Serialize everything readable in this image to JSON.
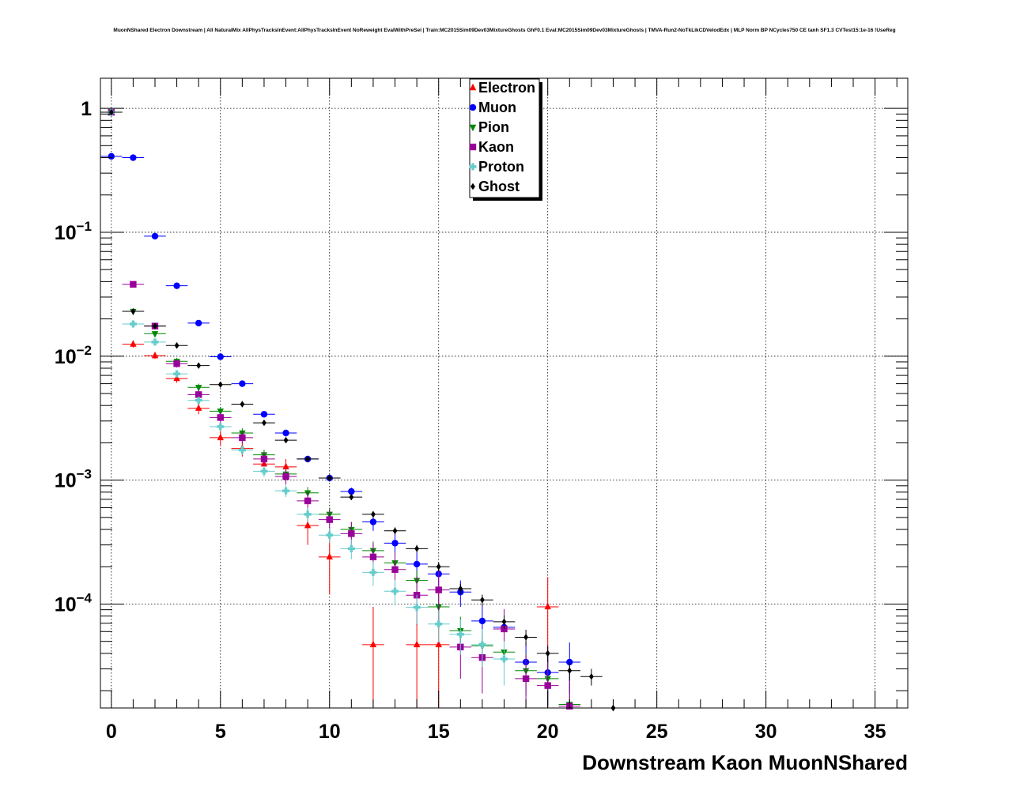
{
  "title": "MuonNShared Electron Downstream | All NaturalMix AllPhysTracksInEvent:AllPhysTracksInEvent NoReweight EvalWithPreSel | Train:MC2015Sim09Dev03MixtureGhosts GhF0.1 Eval:MC2015Sim09Dev03MixtureGhosts | TMVA-Run2-NoTkLikCDVelodEdx | MLP Norm BP NCycles750 CE tanh SF1.3 CVTest15:1e-16 !UseReg",
  "chart_data": {
    "type": "scatter",
    "title": "MuonNShared Electron Downstream | All NaturalMix AllPhysTracksInEvent:AllPhysTracksInEvent NoReweight EvalWithPreSel | Train:MC2015Sim09Dev03MixtureGhosts GhF0.1 Eval:MC2015Sim09Dev03MixtureGhosts | TMVA-Run2-NoTkLikCDVelodEdx | MLP Norm BP NCycles750 CE tanh SF1.3 CVTest15:1e-16 !UseReg",
    "xlabel": "Downstream Kaon MuonNShared",
    "ylabel": "",
    "xlim": [
      -0.5,
      36.5
    ],
    "ylim": [
      1.45e-05,
      1.75
    ],
    "yscale": "log",
    "grid": true,
    "legend_position": "top-center",
    "x_ticks": [
      0,
      5,
      10,
      15,
      20,
      25,
      30,
      35
    ],
    "x_tick_labels": [
      "0",
      "5",
      "10",
      "15",
      "20",
      "25",
      "30",
      "35"
    ],
    "y_ticks": [
      1,
      0.1,
      0.01,
      0.001,
      0.0001
    ],
    "y_tick_labels": [
      {
        "base": "1",
        "exp": ""
      },
      {
        "base": "10",
        "exp": "−1"
      },
      {
        "base": "10",
        "exp": "−2"
      },
      {
        "base": "10",
        "exp": "−3"
      },
      {
        "base": "10",
        "exp": "−4"
      }
    ],
    "series": [
      {
        "name": "Electron",
        "color": "#ff0000",
        "marker": "triangle-up",
        "points": [
          [
            0,
            0.93
          ],
          [
            1,
            0.0125
          ],
          [
            2,
            0.0101
          ],
          [
            3,
            0.0066
          ],
          [
            4,
            0.0038
          ],
          [
            5,
            0.0022
          ],
          [
            6,
            0.0018
          ],
          [
            7,
            0.00135
          ],
          [
            8,
            0.00128
          ],
          [
            9,
            0.00043
          ],
          [
            10,
            0.00024
          ],
          [
            12,
            4.7e-05
          ],
          [
            14,
            4.7e-05
          ],
          [
            15,
            4.7e-05
          ],
          [
            20,
            9.5e-05
          ]
        ],
        "err": [
          0.01,
          0.0008,
          0.0006,
          0.0005,
          0.0004,
          0.0003,
          0.00025,
          0.0002,
          0.0002,
          0.00013,
          0.00012,
          4.8e-05,
          4.8e-05,
          4.8e-05,
          7e-05
        ]
      },
      {
        "name": "Muon",
        "color": "#0000ff",
        "marker": "circle",
        "points": [
          [
            0,
            0.41
          ],
          [
            1,
            0.4
          ],
          [
            2,
            0.093
          ],
          [
            3,
            0.037
          ],
          [
            4,
            0.0185
          ],
          [
            5,
            0.0099
          ],
          [
            6,
            0.006
          ],
          [
            7,
            0.0034
          ],
          [
            8,
            0.0024
          ],
          [
            9,
            0.00148
          ],
          [
            10,
            0.00104
          ],
          [
            11,
            0.00081
          ],
          [
            12,
            0.00046
          ],
          [
            13,
            0.00031
          ],
          [
            14,
            0.00021
          ],
          [
            15,
            0.000175
          ],
          [
            16,
            0.000125
          ],
          [
            17,
            7.3e-05
          ],
          [
            18,
            6.5e-05
          ],
          [
            19,
            3.4e-05
          ],
          [
            20,
            2.8e-05
          ],
          [
            21,
            3.4e-05
          ]
        ],
        "err": [
          0.005,
          0.005,
          0.002,
          0.001,
          0.0006,
          0.0004,
          0.0003,
          0.0002,
          0.00015,
          9e-05,
          7e-05,
          6e-05,
          7e-05,
          6e-05,
          5e-05,
          4e-05,
          3e-05,
          2.5e-05,
          2.2e-05,
          1.5e-05,
          1.3e-05,
          1.5e-05
        ]
      },
      {
        "name": "Pion",
        "color": "#008800",
        "marker": "triangle-down",
        "points": [
          [
            0,
            0.93
          ],
          [
            1,
            0.023
          ],
          [
            2,
            0.0152
          ],
          [
            3,
            0.0091
          ],
          [
            4,
            0.0056
          ],
          [
            5,
            0.0036
          ],
          [
            6,
            0.0024
          ],
          [
            7,
            0.0016
          ],
          [
            8,
            0.00112
          ],
          [
            9,
            0.00079
          ],
          [
            10,
            0.00053
          ],
          [
            11,
            0.0004
          ],
          [
            12,
            0.00027
          ],
          [
            13,
            0.000215
          ],
          [
            14,
            0.000155
          ],
          [
            15,
            9.5e-05
          ],
          [
            16,
            6.1e-05
          ],
          [
            17,
            4.6e-05
          ],
          [
            18,
            4.1e-05
          ],
          [
            19,
            2.9e-05
          ],
          [
            20,
            2.5e-05
          ],
          [
            21,
            1.55e-05
          ]
        ],
        "err": [
          0.01,
          0.001,
          0.0008,
          0.0006,
          0.0004,
          0.0003,
          0.00022,
          0.00016,
          0.00012,
          9e-05,
          7e-05,
          6e-05,
          5e-05,
          4e-05,
          3e-05,
          2.5e-05,
          1.8e-05,
          1.5e-05,
          1.4e-05,
          1.1e-05,
          1e-05,
          7e-06
        ]
      },
      {
        "name": "Kaon",
        "color": "#990099",
        "marker": "square",
        "points": [
          [
            0,
            0.93
          ],
          [
            1,
            0.038
          ],
          [
            2,
            0.0175
          ],
          [
            3,
            0.0087
          ],
          [
            4,
            0.0049
          ],
          [
            5,
            0.0032
          ],
          [
            6,
            0.0022
          ],
          [
            7,
            0.00148
          ],
          [
            8,
            0.00107
          ],
          [
            9,
            0.00068
          ],
          [
            10,
            0.00048
          ],
          [
            11,
            0.00037
          ],
          [
            12,
            0.00024
          ],
          [
            13,
            0.00019
          ],
          [
            14,
            0.000118
          ],
          [
            15,
            0.00013
          ],
          [
            16,
            4.5e-05
          ],
          [
            17,
            3.7e-05
          ],
          [
            18,
            6.3e-05
          ],
          [
            19,
            2.5e-05
          ],
          [
            20,
            2.2e-05
          ],
          [
            21,
            1.5e-05
          ]
        ],
        "err": [
          0.01,
          0.0015,
          0.0009,
          0.0006,
          0.0004,
          0.0003,
          0.00025,
          0.0002,
          0.00015,
          0.00012,
          0.0001,
          9e-05,
          7e-05,
          7e-05,
          5e-05,
          6e-05,
          2e-05,
          1.8e-05,
          2.8e-05,
          1.4e-05,
          1.3e-05,
          9e-06
        ]
      },
      {
        "name": "Proton",
        "color": "#66cccc",
        "marker": "cross",
        "points": [
          [
            0,
            0.93
          ],
          [
            1,
            0.0182
          ],
          [
            2,
            0.013
          ],
          [
            3,
            0.0072
          ],
          [
            4,
            0.0044
          ],
          [
            5,
            0.0027
          ],
          [
            6,
            0.00175
          ],
          [
            7,
            0.00118
          ],
          [
            8,
            0.00082
          ],
          [
            9,
            0.00053
          ],
          [
            10,
            0.00036
          ],
          [
            11,
            0.00028
          ],
          [
            12,
            0.00018
          ],
          [
            13,
            0.000127
          ],
          [
            14,
            9.4e-05
          ],
          [
            15,
            6.9e-05
          ],
          [
            16,
            5.7e-05
          ],
          [
            17,
            4.7e-05
          ],
          [
            18,
            3.6e-05
          ]
        ],
        "err": [
          0.01,
          0.0008,
          0.0006,
          0.0004,
          0.0003,
          0.0002,
          0.00015,
          0.00012,
          9e-05,
          7e-05,
          5e-05,
          5e-05,
          4e-05,
          3e-05,
          2.5e-05,
          2e-05,
          1.8e-05,
          1.6e-05,
          1.4e-05
        ]
      },
      {
        "name": "Ghost",
        "color": "#000000",
        "marker": "diamond",
        "points": [
          [
            0,
            0.93
          ],
          [
            1,
            0.023
          ],
          [
            2,
            0.0175
          ],
          [
            3,
            0.0122
          ],
          [
            4,
            0.0084
          ],
          [
            5,
            0.0059
          ],
          [
            6,
            0.0041
          ],
          [
            7,
            0.0029
          ],
          [
            8,
            0.0021
          ],
          [
            9,
            0.00148
          ],
          [
            10,
            0.00104
          ],
          [
            11,
            0.00073
          ],
          [
            12,
            0.00053
          ],
          [
            13,
            0.00039
          ],
          [
            14,
            0.00028
          ],
          [
            15,
            0.0002
          ],
          [
            16,
            0.000133
          ],
          [
            17,
            0.000108
          ],
          [
            18,
            7.2e-05
          ],
          [
            19,
            5.4e-05
          ],
          [
            20,
            4e-05
          ],
          [
            21,
            2.9e-05
          ],
          [
            22,
            2.6e-05
          ],
          [
            23,
            1.4e-05
          ]
        ],
        "err": [
          0.003,
          0.0005,
          0.0004,
          0.0003,
          0.0002,
          0.00015,
          0.00012,
          0.0001,
          8e-05,
          6e-05,
          5e-05,
          4e-05,
          3e-05,
          2.6e-05,
          2e-05,
          1.6e-05,
          1.3e-05,
          1.1e-05,
          9e-06,
          8e-06,
          6e-06,
          5e-06,
          4e-06,
          3e-06
        ]
      }
    ]
  }
}
